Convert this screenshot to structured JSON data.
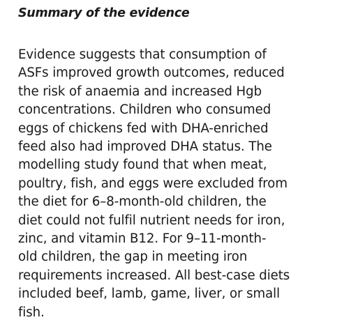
{
  "section": {
    "heading": "Summary of the evidence",
    "lines": [
      "Evidence suggests that consumption of",
      "ASFs improved growth outcomes, reduced",
      "the risk of anaemia and increased Hgb",
      "concentrations. Children who consumed",
      "eggs of chickens fed with DHA-enriched",
      "feed also had improved DHA status. The",
      "modelling study found that when meat,",
      "poultry, fish, and eggs were excluded from",
      "the diet for 6–8-month-old children, the",
      "diet could not fulfil nutrient needs for iron,",
      "zinc, and vitamin B12. For 9–11-month-",
      "old children, the gap in meeting iron",
      "requirements increased. All best-case diets",
      "included beef, lamb, game, liver, or small",
      "fish."
    ]
  }
}
